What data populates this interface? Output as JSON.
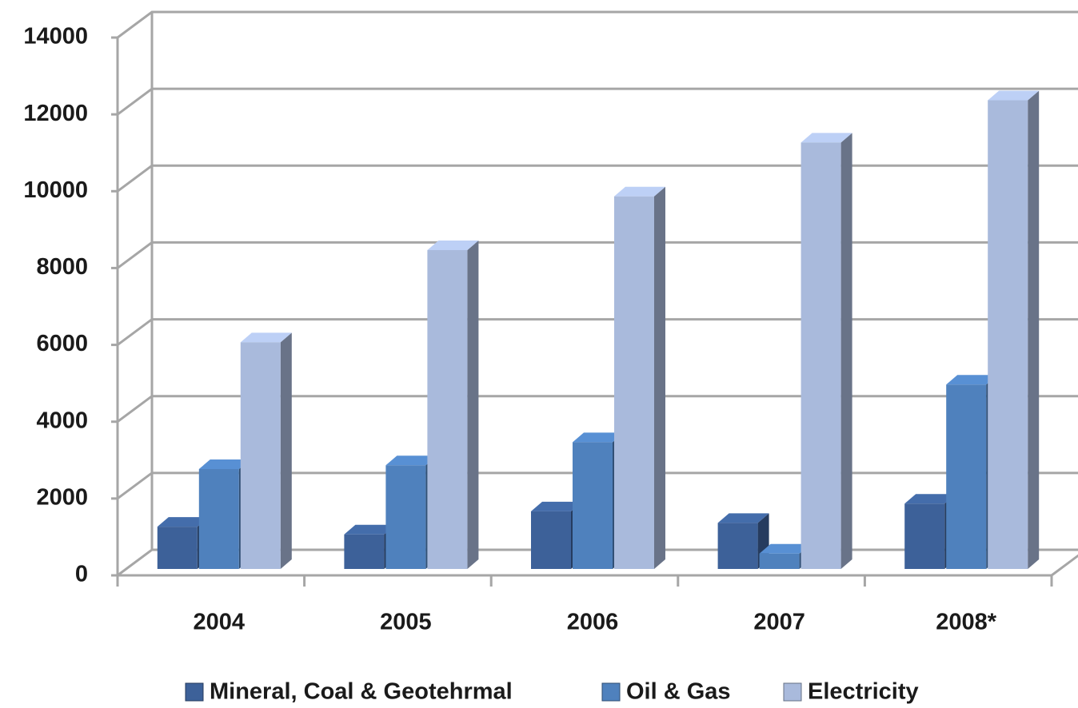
{
  "chart_data": {
    "type": "bar3d",
    "categories": [
      "2004",
      "2005",
      "2006",
      "2007",
      "2008*"
    ],
    "series": [
      {
        "name": "Mineral, Coal & Geotehrmal",
        "color": "#3d6199",
        "values": [
          1100,
          900,
          1500,
          1200,
          1700
        ]
      },
      {
        "name": "Oil & Gas",
        "color": "#4f81bd",
        "values": [
          2600,
          2700,
          3300,
          400,
          4800
        ]
      },
      {
        "name": "Electricity",
        "color": "#a9badc",
        "values": [
          5900,
          8300,
          9700,
          11100,
          12200
        ]
      }
    ],
    "ylim": [
      0,
      14000
    ],
    "yticks": [
      0,
      2000,
      4000,
      6000,
      8000,
      10000,
      12000,
      14000
    ],
    "grid": true,
    "legend": "bottom"
  }
}
